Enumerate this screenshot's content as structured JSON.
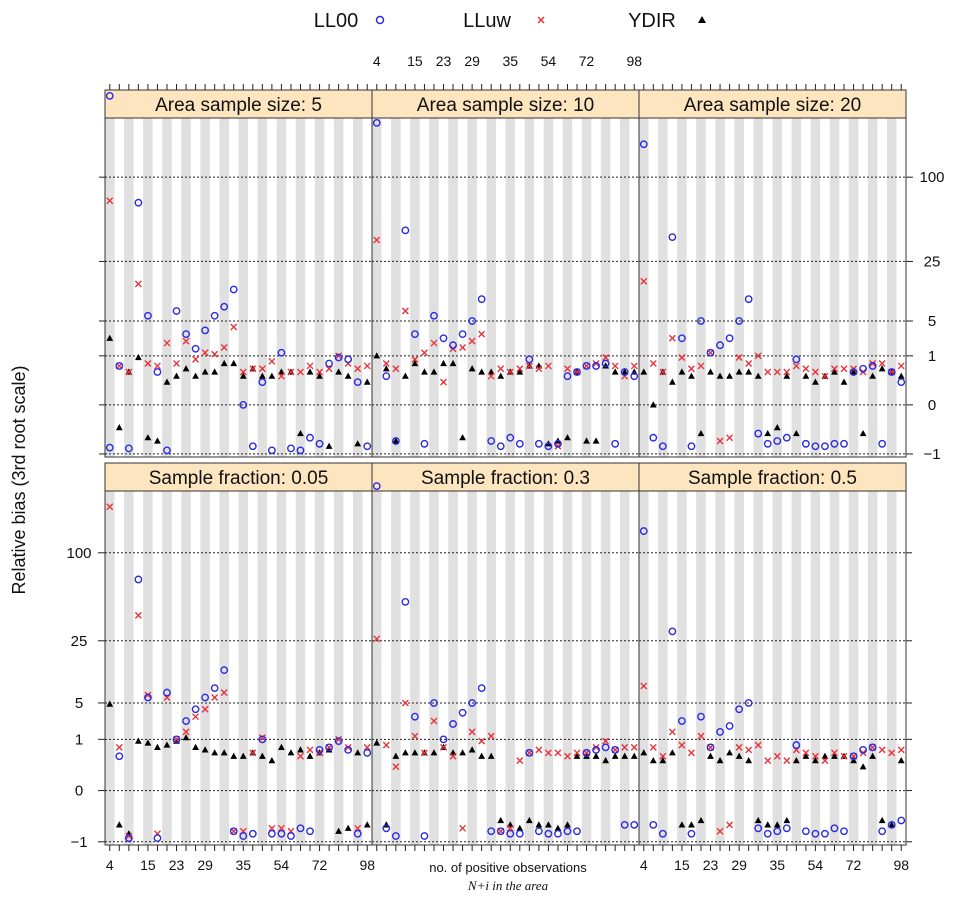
{
  "legend": {
    "items": [
      {
        "label": "LL00",
        "symbol": "circle",
        "color": "#2a2ae0"
      },
      {
        "label": "LLuw",
        "symbol": "cross",
        "color": "#e8333b"
      },
      {
        "label": "YDIR",
        "symbol": "triangle",
        "color": "#000000"
      }
    ]
  },
  "colors": {
    "strip": "#fde5bf",
    "stripe": "#e0e0e0",
    "LL00": "#2a2ae0",
    "LLuw": "#e8333b",
    "YDIR": "#000000"
  },
  "chart_data": {
    "type": "scatter",
    "layout": "trellis 3x2",
    "y_scale": "cube root",
    "ylabel": "Relative bias (3rd root scale)",
    "xlabel_line1": "no. of positive observations",
    "xlabel_line2": "N+i in the area",
    "x_tick_labels": [
      "4",
      "15",
      "23",
      "29",
      "35",
      "54",
      "72",
      "98"
    ],
    "y_tick_labels": [
      "100",
      "25",
      "5",
      "1",
      "0",
      "−1"
    ],
    "y_tick_values": [
      100,
      25,
      5,
      1,
      0,
      -1
    ],
    "n_categories": 28,
    "y_range": [
      -1.2,
      200
    ],
    "series_names": [
      "LL00",
      "LLuw",
      "YDIR"
    ],
    "panels": [
      {
        "label": "Area sample size:  5",
        "series": {
          "LL00": [
            250,
            0.5,
            -0.7,
            70,
            6,
            0.3,
            -0.8,
            7,
            3,
            1.5,
            3.5,
            6,
            8,
            13,
            0,
            -0.6,
            0.1,
            -0.8,
            1.2,
            -0.7,
            -0.8,
            -0.3,
            -0.5,
            0.6,
            0.9,
            0.8,
            0.1,
            -0.6
          ],
          "LLuw": [
            72,
            0.5,
            0.3,
            15,
            0.6,
            0.5,
            2,
            0.6,
            2.2,
            0.8,
            1.2,
            1.1,
            1.6,
            4,
            0.3,
            0.4,
            0.4,
            0.7,
            0.2,
            0.3,
            0.3,
            0.5,
            0.3,
            0.4,
            1.0,
            0.6,
            0.4,
            0.5
          ],
          "YDIR": [
            2.5,
            -0.1,
            0.3,
            0.9,
            -0.3,
            -0.4,
            0.1,
            0.2,
            0.4,
            0.2,
            0.3,
            0.3,
            0.6,
            0.6,
            0.2,
            0.4,
            0.2,
            0.2,
            0.3,
            0.3,
            -0.2,
            0.3,
            0.2,
            -0.6,
            0.3,
            0.2,
            -0.5,
            0.1
          ]
        }
      },
      {
        "label": "Area sample size:  10",
        "series": {
          "LL00": [
            190,
            0.2,
            -0.4,
            45,
            3,
            -0.5,
            6,
            2.5,
            1.8,
            3,
            5,
            10,
            -0.4,
            -0.6,
            -0.3,
            -0.5,
            0.8,
            -0.5,
            -0.6,
            -0.5,
            0.2,
            0.3,
            0.5,
            0.5,
            0.6,
            -0.5,
            0.3,
            0.2
          ],
          "LLuw": [
            38,
            0.6,
            0.4,
            7,
            0.8,
            1.2,
            2,
            0.1,
            1.5,
            1.6,
            2.2,
            3,
            0.2,
            0.4,
            0.3,
            0.4,
            0.5,
            0.4,
            0.5,
            -0.6,
            0.4,
            0.3,
            0.5,
            0.6,
            0.9,
            0.5,
            0.2,
            0.5
          ],
          "YDIR": [
            1.0,
            0.4,
            -0.4,
            0.2,
            0.6,
            0.3,
            0.3,
            0.6,
            0.6,
            -0.3,
            0.4,
            0.3,
            0.3,
            0.2,
            0.3,
            0.3,
            0.5,
            0.5,
            -0.5,
            -0.4,
            -0.3,
            0.3,
            -0.4,
            -0.4,
            0.5,
            0.3,
            0.3,
            0.3
          ]
        }
      },
      {
        "label": "Area sample size:  20",
        "series": {
          "LL00": [
            150,
            -0.3,
            -0.6,
            40,
            2.5,
            -0.6,
            5,
            1.2,
            1.8,
            2.5,
            5,
            10,
            -0.2,
            -0.5,
            -0.4,
            -0.3,
            0.8,
            -0.5,
            -0.6,
            -0.6,
            -0.5,
            -0.5,
            0.3,
            0.4,
            0.5,
            -0.5,
            0.3,
            0.1
          ],
          "LLuw": [
            16,
            0.6,
            0.3,
            2.5,
            0.9,
            0.4,
            0.5,
            1.2,
            -0.4,
            -0.3,
            0.9,
            0.6,
            1.0,
            0.3,
            0.3,
            0.3,
            0.5,
            0.4,
            0.3,
            0.2,
            0.4,
            0.4,
            0.4,
            0.3,
            0.6,
            0.6,
            0.3,
            0.5
          ],
          "YDIR": [
            0.3,
            0.0,
            0.3,
            0.1,
            0.3,
            0.2,
            -0.2,
            0.3,
            0.2,
            0.2,
            0.3,
            0.3,
            0.2,
            -0.2,
            -0.1,
            0.2,
            -0.2,
            0.2,
            0.1,
            0.2,
            0.3,
            0.1,
            0.3,
            -0.2,
            0.2,
            0.4,
            0.3,
            0.2
          ]
        }
      },
      {
        "label": "Sample fraction:  0.05",
        "series": {
          "LL00": [
            300,
            0.3,
            -0.8,
            70,
            6,
            -0.8,
            7,
            1,
            2.5,
            4,
            6,
            8,
            13,
            -0.5,
            -0.7,
            -0.6,
            1,
            -0.6,
            -0.6,
            -0.7,
            -0.4,
            -0.5,
            0.5,
            0.6,
            0.9,
            0.5,
            -0.6,
            0.4
          ],
          "LLuw": [
            170,
            0.6,
            -0.7,
            40,
            6.5,
            -0.6,
            6,
            1.0,
            1.5,
            3,
            4,
            6,
            7,
            -0.5,
            -0.5,
            0.4,
            1.1,
            -0.4,
            -0.4,
            -0.5,
            0.3,
            0.5,
            0.4,
            0.6,
            1.0,
            0.6,
            -0.4,
            0.6
          ],
          "YDIR": [
            4.8,
            -0.3,
            -0.6,
            0.9,
            0.8,
            0.6,
            0.7,
            0.9,
            1.1,
            0.6,
            0.5,
            0.4,
            0.4,
            0.3,
            0.3,
            0.4,
            0.3,
            0.2,
            0.6,
            0.4,
            0.5,
            0.3,
            0.4,
            0.5,
            -0.5,
            -0.4,
            0.4,
            -0.3
          ]
        }
      },
      {
        "label": "Sample fraction:  0.3",
        "series": {
          "LL00": [
            210,
            -0.4,
            -0.7,
            50,
            3,
            -0.7,
            5,
            1,
            2.2,
            3.5,
            5,
            8,
            -0.5,
            -0.5,
            -0.6,
            -0.6,
            0.4,
            -0.5,
            -0.6,
            -0.6,
            -0.5,
            -0.5,
            0.4,
            0.5,
            0.6,
            0.5,
            -0.3,
            -0.3
          ],
          "LLuw": [
            26,
            0.7,
            0.1,
            5,
            1.2,
            0.4,
            2.5,
            0.6,
            0.3,
            -0.4,
            1.5,
            0.9,
            1.2,
            -0.5,
            -0.4,
            0.2,
            0.4,
            0.5,
            0.4,
            0.4,
            0.3,
            0.4,
            0.4,
            0.6,
            0.9,
            0.5,
            0.6,
            0.6
          ],
          "YDIR": [
            0.8,
            -0.3,
            0.3,
            0.4,
            0.4,
            0.4,
            0.4,
            0.6,
            0.4,
            0.4,
            0.5,
            0.3,
            0.3,
            -0.2,
            -0.3,
            -0.4,
            -0.2,
            -0.3,
            -0.3,
            -0.4,
            -0.3,
            0.3,
            0.3,
            0.3,
            0.2,
            0.3,
            0.3,
            0.3
          ]
        }
      },
      {
        "label": "Sample fraction:  0.5",
        "series": {
          "LL00": [
            130,
            -0.3,
            -0.6,
            30,
            2.5,
            -0.6,
            3,
            0.6,
            1.5,
            2,
            4,
            5,
            -0.4,
            -0.6,
            -0.5,
            -0.4,
            0.7,
            -0.5,
            -0.6,
            -0.6,
            -0.4,
            -0.5,
            0.3,
            0.5,
            0.6,
            -0.5,
            -0.3,
            -0.2
          ],
          "LLuw": [
            8.5,
            0.6,
            0.3,
            1.5,
            0.7,
            0.4,
            1.2,
            0.6,
            -0.5,
            -0.3,
            0.6,
            0.5,
            0.7,
            0.2,
            0.3,
            0.2,
            0.5,
            0.4,
            0.3,
            0.2,
            0.4,
            0.3,
            0.3,
            0.4,
            0.6,
            0.5,
            0.4,
            0.5
          ],
          "YDIR": [
            0.4,
            0.2,
            0.2,
            0.4,
            -0.3,
            -0.3,
            -0.2,
            0.3,
            0.2,
            0.4,
            0.3,
            0.2,
            -0.2,
            -0.3,
            -0.3,
            -0.2,
            0.2,
            0.3,
            0.2,
            0.3,
            0.3,
            0.3,
            0.2,
            0.1,
            0.3,
            -0.2,
            -0.3,
            0.2
          ]
        }
      }
    ]
  }
}
